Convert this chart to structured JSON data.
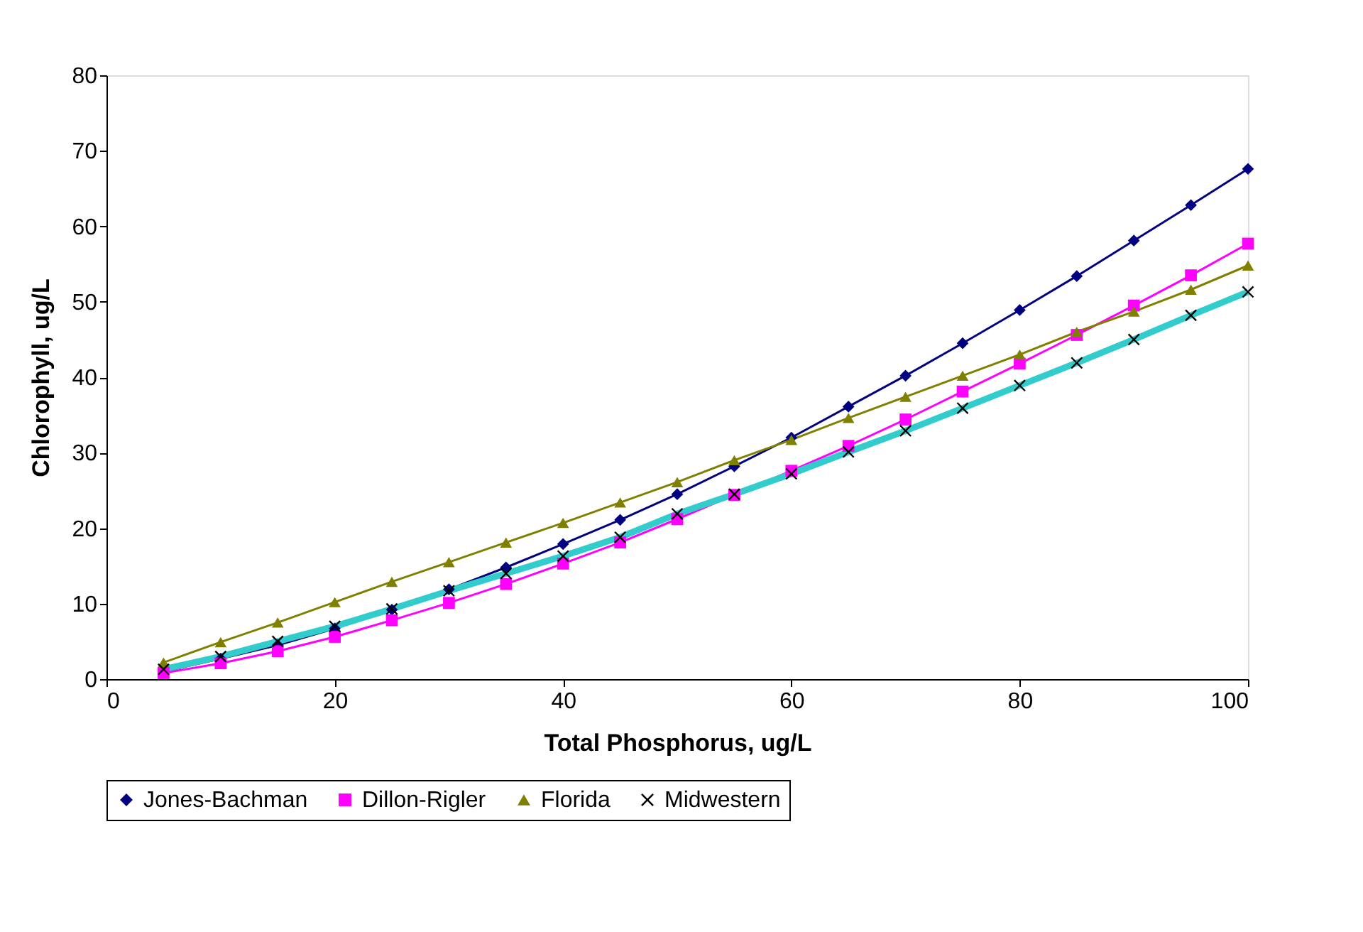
{
  "chart_data": {
    "type": "line",
    "xlabel": "Total Phosphorus, ug/L",
    "ylabel": "Chlorophyll, ug/L",
    "x": [
      5,
      10,
      15,
      20,
      25,
      30,
      35,
      40,
      45,
      50,
      55,
      60,
      65,
      70,
      75,
      80,
      85,
      90,
      95,
      100
    ],
    "series": [
      {
        "name": "Jones-Bachman",
        "color": "#000080",
        "marker": "diamond",
        "values": [
          1.0,
          2.7,
          4.5,
          6.7,
          9.2,
          11.9,
          14.8,
          17.9,
          21.1,
          24.5,
          28.2,
          32.0,
          36.1,
          40.2,
          44.5,
          48.9,
          53.4,
          58.1,
          62.8,
          67.6
        ]
      },
      {
        "name": "Dillon-Rigler",
        "color": "#ff00ff",
        "marker": "square",
        "values": [
          0.8,
          2.1,
          3.7,
          5.6,
          7.8,
          10.1,
          12.6,
          15.3,
          18.1,
          21.2,
          24.4,
          27.6,
          30.9,
          34.4,
          38.1,
          41.8,
          45.6,
          49.5,
          53.5,
          57.7
        ]
      },
      {
        "name": "Florida",
        "color": "#808000",
        "marker": "triangle",
        "values": [
          2.2,
          4.9,
          7.5,
          10.2,
          12.9,
          15.5,
          18.1,
          20.7,
          23.4,
          26.1,
          29.0,
          31.7,
          34.6,
          37.4,
          40.2,
          43.0,
          46.0,
          48.7,
          51.6,
          54.8
        ]
      },
      {
        "name": "Midwestern",
        "color": "#33cccc",
        "marker": "cross",
        "values": [
          1.3,
          3.0,
          5.0,
          7.0,
          9.3,
          11.7,
          14.0,
          16.3,
          18.8,
          21.9,
          24.5,
          27.2,
          30.1,
          32.9,
          35.9,
          38.9,
          41.9,
          45.0,
          48.2,
          51.3
        ]
      }
    ],
    "xlim": [
      0,
      100
    ],
    "xticks": [
      0,
      20,
      40,
      60,
      80,
      100
    ],
    "ylim": [
      0,
      80
    ],
    "yticks": [
      0,
      10,
      20,
      30,
      40,
      50,
      60,
      70,
      80
    ],
    "grid": false,
    "legend": "bottom",
    "line_style": "solid"
  }
}
